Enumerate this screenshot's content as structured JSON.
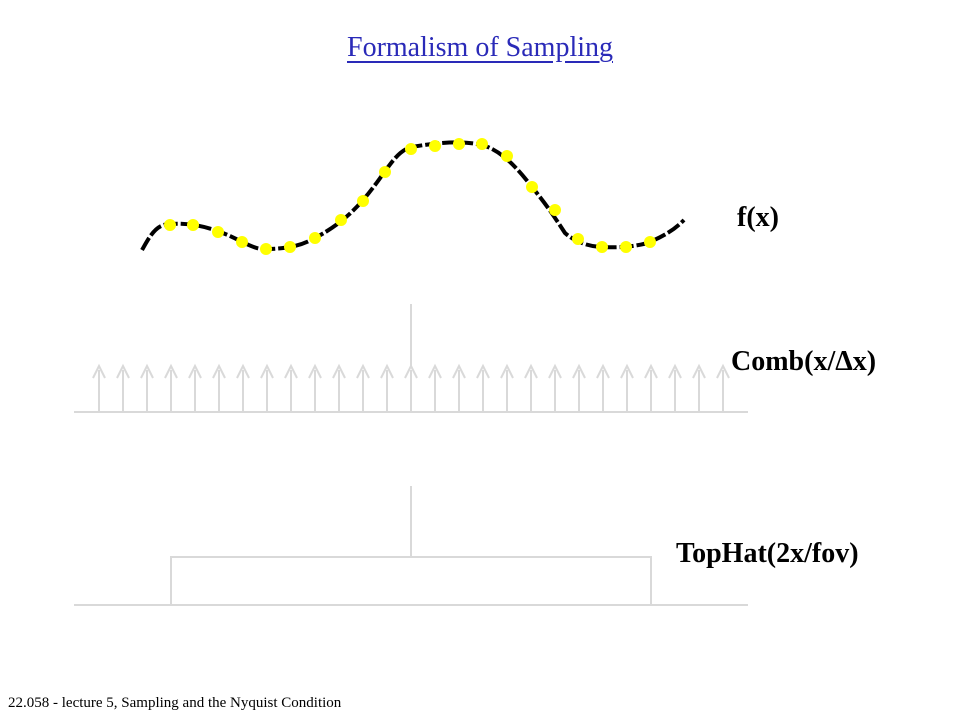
{
  "slide": {
    "title": "Formalism of Sampling",
    "footer": "22.058 - lecture 5, Sampling and the Nyquist Condition"
  },
  "labels": {
    "fx": "f(x)",
    "comb": "Comb(x/Δx)",
    "tophat": "TopHat(2x/fov)"
  },
  "colors": {
    "title": "#2a2ab8",
    "curve": "#000000",
    "samples": "#ffff00",
    "diagram_lines": "#d9d9d9"
  },
  "comb": {
    "teeth": 27
  }
}
